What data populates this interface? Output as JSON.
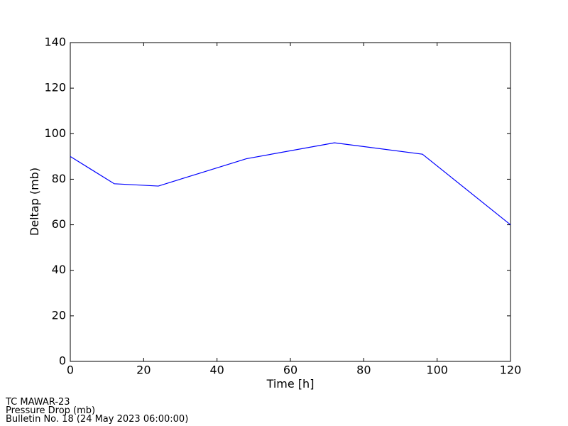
{
  "chart_data": {
    "type": "line",
    "xlabel": "Time [h]",
    "ylabel": "Deltap (mb)",
    "x": [
      0,
      12,
      24,
      36,
      48,
      72,
      96,
      120
    ],
    "series": [
      {
        "color": "#0000ff",
        "values": [
          90,
          78,
          77,
          83,
          89,
          96,
          91,
          60
        ]
      }
    ],
    "xlim": [
      0,
      120
    ],
    "xticks": [
      0,
      20,
      40,
      60,
      80,
      100,
      120
    ],
    "ylim": [
      0,
      140
    ],
    "yticks": [
      0,
      20,
      40,
      60,
      80,
      100,
      120,
      140
    ],
    "footer": [
      "TC MAWAR-23",
      "Pressure Drop (mb)",
      "Bulletin No. 18 (24 May 2023  06:00:00)"
    ]
  }
}
